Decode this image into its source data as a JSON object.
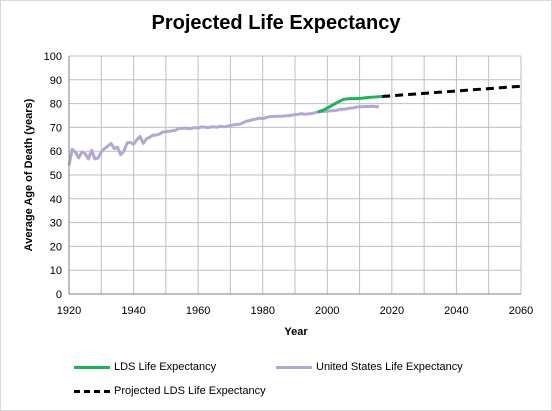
{
  "chart_data": {
    "type": "line",
    "title": "Projected Life Expectancy",
    "xlabel": "Year",
    "ylabel": "Average Age of Death (years)",
    "xlim": [
      1920,
      2060
    ],
    "ylim": [
      0,
      100
    ],
    "x_ticks": [
      1920,
      1940,
      1960,
      1980,
      2000,
      2020,
      2040,
      2060
    ],
    "y_ticks": [
      0,
      10,
      20,
      30,
      40,
      50,
      60,
      70,
      80,
      90,
      100
    ],
    "x_grid_step": 10,
    "grid": true,
    "legend_position": "bottom",
    "series": [
      {
        "name": "United States Life Expectancy",
        "color": "#b4a7d6",
        "dash": "solid",
        "points": [
          [
            1920,
            54.1
          ],
          [
            1921,
            60.8
          ],
          [
            1922,
            59.6
          ],
          [
            1923,
            57.2
          ],
          [
            1924,
            59.7
          ],
          [
            1925,
            59.0
          ],
          [
            1926,
            56.7
          ],
          [
            1927,
            60.4
          ],
          [
            1928,
            56.8
          ],
          [
            1929,
            57.1
          ],
          [
            1930,
            59.7
          ],
          [
            1931,
            61.1
          ],
          [
            1932,
            62.1
          ],
          [
            1933,
            63.3
          ],
          [
            1934,
            61.1
          ],
          [
            1935,
            61.7
          ],
          [
            1936,
            58.5
          ],
          [
            1937,
            60.0
          ],
          [
            1938,
            63.5
          ],
          [
            1939,
            63.7
          ],
          [
            1940,
            62.9
          ],
          [
            1941,
            64.8
          ],
          [
            1942,
            66.2
          ],
          [
            1943,
            63.3
          ],
          [
            1944,
            65.2
          ],
          [
            1945,
            65.9
          ],
          [
            1946,
            66.7
          ],
          [
            1947,
            66.8
          ],
          [
            1948,
            67.2
          ],
          [
            1949,
            68.0
          ],
          [
            1950,
            68.2
          ],
          [
            1951,
            68.4
          ],
          [
            1952,
            68.6
          ],
          [
            1953,
            68.8
          ],
          [
            1954,
            69.6
          ],
          [
            1955,
            69.6
          ],
          [
            1956,
            69.7
          ],
          [
            1957,
            69.5
          ],
          [
            1958,
            69.6
          ],
          [
            1959,
            69.9
          ],
          [
            1960,
            69.7
          ],
          [
            1961,
            70.2
          ],
          [
            1962,
            70.1
          ],
          [
            1963,
            69.9
          ],
          [
            1964,
            70.2
          ],
          [
            1965,
            70.2
          ],
          [
            1966,
            70.1
          ],
          [
            1967,
            70.5
          ],
          [
            1968,
            70.2
          ],
          [
            1969,
            70.5
          ],
          [
            1970,
            70.8
          ],
          [
            1971,
            71.1
          ],
          [
            1972,
            71.2
          ],
          [
            1973,
            71.4
          ],
          [
            1974,
            72.0
          ],
          [
            1975,
            72.6
          ],
          [
            1976,
            72.9
          ],
          [
            1977,
            73.3
          ],
          [
            1978,
            73.5
          ],
          [
            1979,
            73.9
          ],
          [
            1980,
            73.7
          ],
          [
            1981,
            74.1
          ],
          [
            1982,
            74.5
          ],
          [
            1983,
            74.6
          ],
          [
            1984,
            74.7
          ],
          [
            1985,
            74.7
          ],
          [
            1986,
            74.7
          ],
          [
            1987,
            74.9
          ],
          [
            1988,
            74.9
          ],
          [
            1989,
            75.1
          ],
          [
            1990,
            75.4
          ],
          [
            1991,
            75.5
          ],
          [
            1992,
            75.8
          ],
          [
            1993,
            75.5
          ],
          [
            1994,
            75.7
          ],
          [
            1995,
            75.8
          ],
          [
            1996,
            76.1
          ],
          [
            1997,
            76.5
          ],
          [
            1998,
            76.7
          ],
          [
            1999,
            76.7
          ],
          [
            2000,
            76.8
          ],
          [
            2001,
            77.0
          ],
          [
            2002,
            77.0
          ],
          [
            2003,
            77.2
          ],
          [
            2004,
            77.6
          ],
          [
            2005,
            77.6
          ],
          [
            2006,
            77.8
          ],
          [
            2007,
            78.1
          ],
          [
            2008,
            78.2
          ],
          [
            2009,
            78.5
          ],
          [
            2010,
            78.7
          ],
          [
            2011,
            78.7
          ],
          [
            2012,
            78.8
          ],
          [
            2013,
            78.8
          ],
          [
            2014,
            78.9
          ],
          [
            2015,
            78.7
          ],
          [
            2016,
            78.7
          ]
        ]
      },
      {
        "name": "LDS Life Expectancy",
        "color": "#1fb25a",
        "dash": "solid",
        "points": [
          [
            1997,
            76.4
          ],
          [
            1999,
            77.4
          ],
          [
            2001,
            78.9
          ],
          [
            2003,
            80.4
          ],
          [
            2005,
            81.8
          ],
          [
            2007,
            82.1
          ],
          [
            2009,
            82.1
          ],
          [
            2011,
            82.3
          ],
          [
            2013,
            82.6
          ],
          [
            2015,
            82.8
          ],
          [
            2017,
            83.0
          ]
        ]
      },
      {
        "name": "Projected LDS Life Expectancy",
        "color": "#000000",
        "dash": "dashed",
        "points": [
          [
            2017,
            83.0
          ],
          [
            2030,
            84.3
          ],
          [
            2040,
            85.3
          ],
          [
            2050,
            86.3
          ],
          [
            2060,
            87.3
          ]
        ]
      }
    ]
  }
}
